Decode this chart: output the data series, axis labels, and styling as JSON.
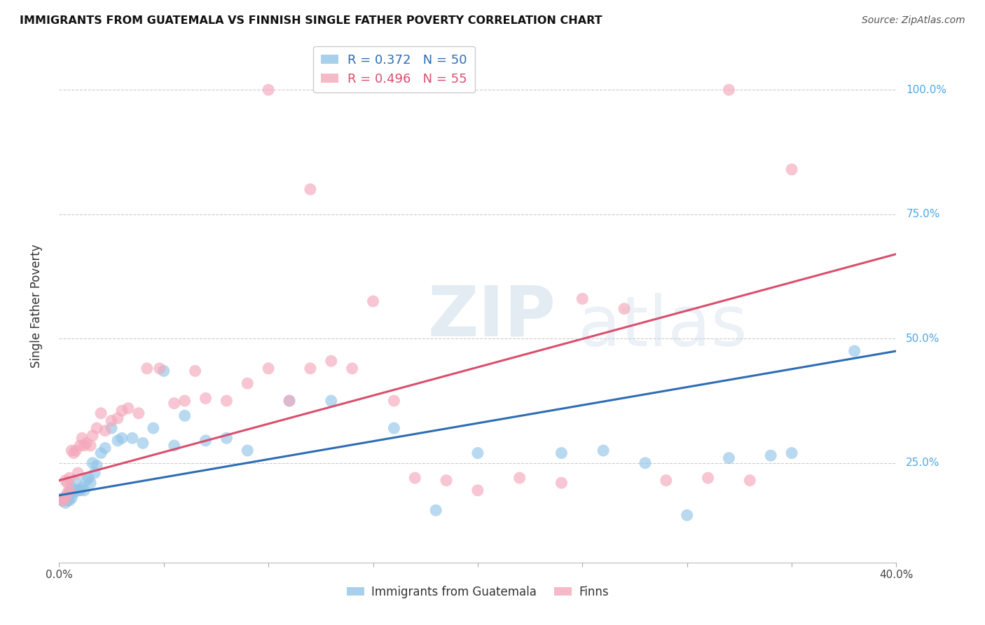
{
  "title": "IMMIGRANTS FROM GUATEMALA VS FINNISH SINGLE FATHER POVERTY CORRELATION CHART",
  "source": "Source: ZipAtlas.com",
  "ylabel": "Single Father Poverty",
  "ytick_labels": [
    "100.0%",
    "75.0%",
    "50.0%",
    "25.0%"
  ],
  "ytick_values": [
    1.0,
    0.75,
    0.5,
    0.25
  ],
  "xlim": [
    0.0,
    0.4
  ],
  "ylim": [
    0.05,
    1.08
  ],
  "legend1_label": "R = 0.372   N = 50",
  "legend2_label": "R = 0.496   N = 55",
  "legend1_color": "#92c5e8",
  "legend2_color": "#f4a8bb",
  "trendline1_color": "#2e6db4",
  "trendline2_color": "#d94f6e",
  "bottom_legend1": "Immigrants from Guatemala",
  "bottom_legend2": "Finns",
  "blue_x": [
    0.001,
    0.002,
    0.002,
    0.003,
    0.003,
    0.004,
    0.004,
    0.005,
    0.005,
    0.006,
    0.006,
    0.007,
    0.008,
    0.009,
    0.01,
    0.011,
    0.012,
    0.013,
    0.014,
    0.015,
    0.016,
    0.017,
    0.018,
    0.02,
    0.022,
    0.025,
    0.028,
    0.03,
    0.035,
    0.04,
    0.045,
    0.05,
    0.055,
    0.06,
    0.07,
    0.08,
    0.09,
    0.11,
    0.13,
    0.16,
    0.18,
    0.2,
    0.24,
    0.26,
    0.28,
    0.3,
    0.32,
    0.34,
    0.35,
    0.38
  ],
  "blue_y": [
    0.175,
    0.175,
    0.18,
    0.17,
    0.18,
    0.18,
    0.175,
    0.175,
    0.19,
    0.18,
    0.2,
    0.19,
    0.21,
    0.195,
    0.195,
    0.2,
    0.195,
    0.215,
    0.22,
    0.21,
    0.25,
    0.23,
    0.245,
    0.27,
    0.28,
    0.32,
    0.295,
    0.3,
    0.3,
    0.29,
    0.32,
    0.435,
    0.285,
    0.345,
    0.295,
    0.3,
    0.275,
    0.375,
    0.375,
    0.32,
    0.155,
    0.27,
    0.27,
    0.275,
    0.25,
    0.145,
    0.26,
    0.265,
    0.27,
    0.475
  ],
  "pink_x": [
    0.001,
    0.002,
    0.003,
    0.003,
    0.004,
    0.004,
    0.005,
    0.005,
    0.006,
    0.007,
    0.008,
    0.009,
    0.01,
    0.011,
    0.012,
    0.013,
    0.015,
    0.016,
    0.018,
    0.02,
    0.022,
    0.025,
    0.028,
    0.03,
    0.033,
    0.038,
    0.042,
    0.048,
    0.055,
    0.06,
    0.065,
    0.07,
    0.08,
    0.09,
    0.1,
    0.11,
    0.12,
    0.13,
    0.14,
    0.15,
    0.16,
    0.17,
    0.185,
    0.2,
    0.22,
    0.24,
    0.25,
    0.27,
    0.29,
    0.31,
    0.33,
    0.12,
    0.1,
    0.32,
    0.35
  ],
  "pink_y": [
    0.175,
    0.175,
    0.18,
    0.215,
    0.19,
    0.21,
    0.195,
    0.22,
    0.275,
    0.27,
    0.275,
    0.23,
    0.285,
    0.3,
    0.285,
    0.29,
    0.285,
    0.305,
    0.32,
    0.35,
    0.315,
    0.335,
    0.34,
    0.355,
    0.36,
    0.35,
    0.44,
    0.44,
    0.37,
    0.375,
    0.435,
    0.38,
    0.375,
    0.41,
    0.44,
    0.375,
    0.44,
    0.455,
    0.44,
    0.575,
    0.375,
    0.22,
    0.215,
    0.195,
    0.22,
    0.21,
    0.58,
    0.56,
    0.215,
    0.22,
    0.215,
    0.8,
    1.0,
    1.0,
    0.84
  ],
  "trendline1_x": [
    0.0,
    0.4
  ],
  "trendline1_y": [
    0.185,
    0.475
  ],
  "trendline2_x": [
    0.0,
    0.4
  ],
  "trendline2_y": [
    0.215,
    0.67
  ]
}
